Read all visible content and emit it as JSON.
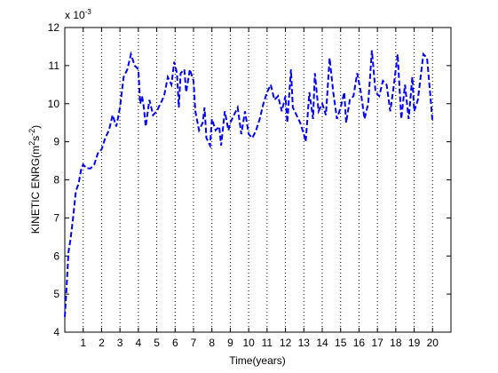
{
  "chart_data": {
    "type": "line",
    "xlabel": "Time(years)",
    "ylabel_parts": [
      "KINETIC ENRG(m",
      "2",
      "s",
      "-2",
      ")"
    ],
    "exponent_parts": [
      "x 10",
      "-3"
    ],
    "xlim": [
      0,
      21
    ],
    "ylim": [
      4,
      12
    ],
    "xticks": [
      1,
      2,
      3,
      4,
      5,
      6,
      7,
      8,
      9,
      10,
      11,
      12,
      13,
      14,
      15,
      16,
      17,
      18,
      19,
      20
    ],
    "yticks": [
      4,
      5,
      6,
      7,
      8,
      9,
      10,
      11,
      12
    ],
    "xgrid": true,
    "grid_style": "dotted",
    "series": [
      {
        "color": "#0000ff",
        "line_style": "dashed",
        "x": [
          0,
          0.1,
          0.2,
          0.3,
          0.45,
          0.6,
          0.75,
          0.9,
          1.0,
          1.2,
          1.4,
          1.6,
          1.8,
          2.0,
          2.2,
          2.4,
          2.6,
          2.8,
          3.0,
          3.2,
          3.4,
          3.6,
          3.8,
          4.0,
          4.1,
          4.2,
          4.3,
          4.4,
          4.6,
          4.8,
          5.0,
          5.2,
          5.4,
          5.6,
          5.8,
          5.95,
          6.1,
          6.2,
          6.3,
          6.5,
          6.6,
          6.8,
          7.0,
          7.1,
          7.3,
          7.5,
          7.6,
          7.7,
          7.9,
          8.0,
          8.2,
          8.4,
          8.5,
          8.7,
          8.9,
          9.0,
          9.2,
          9.4,
          9.6,
          9.8,
          10.0,
          10.2,
          10.4,
          10.6,
          10.8,
          11.0,
          11.2,
          11.4,
          11.6,
          11.8,
          12.0,
          12.1,
          12.3,
          12.4,
          12.6,
          12.8,
          13.0,
          13.1,
          13.3,
          13.5,
          13.6,
          13.8,
          14.0,
          14.2,
          14.4,
          14.6,
          14.8,
          15.0,
          15.2,
          15.3,
          15.5,
          15.7,
          15.9,
          16.1,
          16.3,
          16.5,
          16.7,
          16.9,
          17.1,
          17.3,
          17.5,
          17.7,
          17.9,
          18.1,
          18.3,
          18.5,
          18.7,
          18.9,
          19.0,
          19.2,
          19.5,
          19.7,
          19.9,
          20.0
        ],
        "values": [
          4.4,
          5.2,
          6.1,
          6.4,
          7.0,
          7.7,
          7.9,
          8.3,
          8.4,
          8.3,
          8.3,
          8.4,
          8.7,
          8.8,
          9.1,
          9.3,
          9.7,
          9.4,
          9.9,
          10.7,
          10.9,
          11.3,
          11.0,
          10.9,
          10.0,
          10.2,
          9.9,
          9.4,
          10.1,
          9.7,
          9.8,
          10.0,
          10.2,
          10.7,
          10.5,
          11.1,
          10.8,
          9.9,
          10.8,
          10.9,
          10.3,
          10.9,
          10.6,
          9.8,
          9.3,
          9.5,
          9.9,
          9.1,
          8.9,
          9.6,
          9.3,
          9.4,
          8.9,
          9.8,
          9.3,
          9.5,
          9.7,
          9.9,
          9.2,
          9.8,
          9.2,
          9.1,
          9.3,
          9.6,
          10.0,
          10.3,
          10.5,
          10.1,
          10.2,
          9.8,
          10.2,
          9.5,
          10.9,
          9.9,
          9.7,
          9.5,
          9.2,
          9.0,
          10.3,
          9.6,
          10.8,
          9.8,
          10.0,
          9.7,
          11.2,
          10.3,
          9.6,
          9.9,
          10.3,
          9.5,
          10.1,
          10.2,
          10.8,
          10.3,
          9.6,
          10.0,
          11.4,
          10.3,
          10.2,
          10.6,
          10.5,
          9.8,
          10.5,
          11.3,
          9.6,
          10.5,
          9.6,
          10.7,
          9.8,
          10.1,
          11.3,
          11.2,
          10.1,
          9.5
        ]
      }
    ]
  }
}
